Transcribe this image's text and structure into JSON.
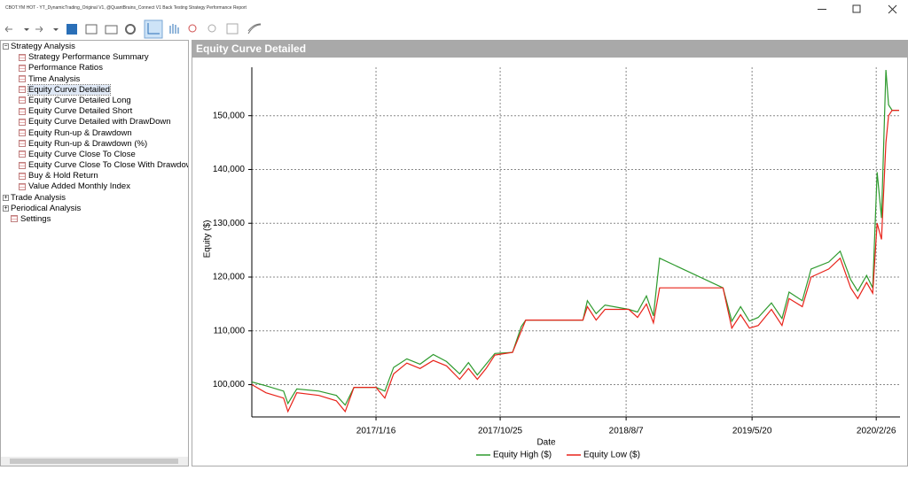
{
  "window": {
    "title": "CBOT.YM HOT - YT_DynamicTrading_Original V1, @QuantBrains_Connect V1 Back Testing Strategy Performance Report"
  },
  "tree": {
    "groups": [
      {
        "label": "Strategy Analysis",
        "items": [
          "Strategy Performance Summary",
          "Performance Ratios",
          "Time Analysis",
          "Equity Curve Detailed",
          "Equity Curve Detailed Long",
          "Equity Curve Detailed Short",
          "Equity Curve Detailed with DrawDown",
          "Equity Run-up & Drawdown",
          "Equity Run-up & Drawdown (%)",
          "Equity Curve Close To Close",
          "Equity Curve Close To Close With Drawdown",
          "Buy & Hold Return",
          "Value Added Monthly Index"
        ]
      },
      {
        "label": "Trade Analysis",
        "items": []
      },
      {
        "label": "Periodical Analysis",
        "items": []
      }
    ],
    "settings": "Settings"
  },
  "panel": {
    "title": "Equity Curve Detailed"
  },
  "chart_data": {
    "type": "line",
    "x_label": "Date",
    "y_label": "Equity ($)",
    "x": [
      "2016/4/9",
      "2016/5/11",
      "2016/6/20",
      "2016/6/30",
      "2016/7/20",
      "2016/9/8",
      "2016/10/18",
      "2016/11/7",
      "2016/11/27",
      "2017/1/16",
      "2017/2/5",
      "2017/2/25",
      "2017/3/27",
      "2017/4/26",
      "2017/5/26",
      "2017/6/25",
      "2017/7/25",
      "2017/8/14",
      "2017/9/3",
      "2017/9/23",
      "2017/10/13",
      "2017/11/22",
      "2017/12/12",
      "2017/12/22",
      "2018/5/1",
      "2018/5/11",
      "2018/5/31",
      "2018/6/20",
      "2018/8/13",
      "2018/9/2",
      "2018/9/22",
      "2018/10/8",
      "2018/10/22",
      "2019/3/15",
      "2019/4/4",
      "2019/4/24",
      "2019/5/14",
      "2019/6/3",
      "2019/7/3",
      "2019/7/27",
      "2019/8/12",
      "2019/9/11",
      "2019/10/1",
      "2019/11/10",
      "2019/12/6",
      "2019/12/30",
      "2020/1/15",
      "2020/2/4",
      "2020/2/18",
      "2020/2/28",
      "2020/3/9",
      "2020/3/19",
      "2020/3/25",
      "2020/4/2",
      "2020/4/18"
    ],
    "series": [
      {
        "name": "Equity High ($)",
        "color": "#2e9a2e",
        "values": [
          100500,
          99800,
          98800,
          96500,
          99200,
          98800,
          98000,
          96200,
          99500,
          99500,
          98800,
          103200,
          104800,
          103800,
          105600,
          104300,
          102000,
          104100,
          101800,
          103800,
          105800,
          106000,
          110800,
          112000,
          112000,
          115600,
          113200,
          114800,
          114000,
          113500,
          116500,
          112800,
          123500,
          118000,
          111800,
          114500,
          111800,
          112500,
          115200,
          112300,
          117200,
          115600,
          121500,
          122800,
          124800,
          119500,
          117400,
          120300,
          118000,
          139500,
          131000,
          158500,
          152000,
          151000,
          151000
        ]
      },
      {
        "name": "Equity Low ($)",
        "color": "#e8231a",
        "values": [
          100000,
          98500,
          97500,
          95000,
          98500,
          98000,
          97000,
          95000,
          99500,
          99500,
          97500,
          102000,
          104000,
          103000,
          104500,
          103500,
          101000,
          103000,
          101000,
          103000,
          105500,
          106000,
          110000,
          112000,
          112000,
          114500,
          112000,
          114000,
          114000,
          112500,
          115000,
          111500,
          118000,
          118000,
          110500,
          113000,
          110500,
          111000,
          114000,
          111000,
          116000,
          114500,
          120000,
          121500,
          123500,
          118000,
          116000,
          119000,
          117000,
          130000,
          127000,
          145000,
          150000,
          151000,
          151000
        ]
      }
    ],
    "xlim": [
      "2016/4/9",
      "2020/4/20"
    ],
    "xticks": [
      "2017/1/16",
      "2017/10/25",
      "2018/8/7",
      "2019/5/20",
      "2020/2/26"
    ],
    "ylim": [
      94000,
      159000
    ],
    "yticks": [
      {
        "value": 100000,
        "label": "100,000"
      },
      {
        "value": 110000,
        "label": "110,000"
      },
      {
        "value": 120000,
        "label": "120,000"
      },
      {
        "value": 130000,
        "label": "130,000"
      },
      {
        "value": 140000,
        "label": "140,000"
      },
      {
        "value": 150000,
        "label": "150,000"
      }
    ],
    "grid": true,
    "legend": "bottom"
  }
}
